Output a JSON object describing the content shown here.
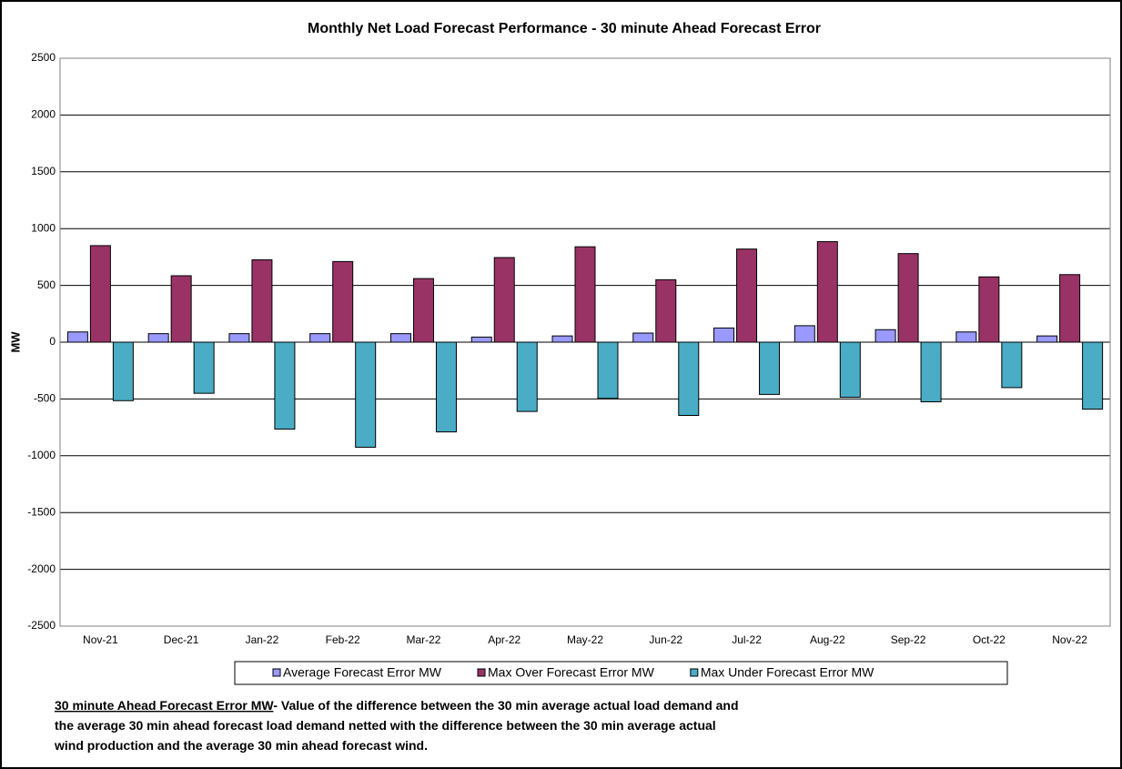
{
  "chart_data": {
    "type": "bar",
    "title": "Monthly Net Load Forecast Performance - 30 minute Ahead Forecast Error",
    "y_label": "MW",
    "categories": [
      "Nov-21",
      "Dec-21",
      "Jan-22",
      "Feb-22",
      "Mar-22",
      "Apr-22",
      "May-22",
      "Jun-22",
      "Jul-22",
      "Aug-22",
      "Sep-22",
      "Oct-22",
      "Nov-22"
    ],
    "series": [
      {
        "name": "Average Forecast Error MW",
        "color": "#9999ff",
        "values": [
          90,
          75,
          75,
          75,
          75,
          45,
          55,
          80,
          125,
          145,
          110,
          90,
          55
        ]
      },
      {
        "name": "Max Over Forecast Error MW",
        "color": "#993366",
        "values": [
          850,
          585,
          725,
          710,
          560,
          745,
          840,
          550,
          820,
          885,
          780,
          575,
          595
        ]
      },
      {
        "name": "Max Under Forecast Error MW",
        "color": "#4bacc6",
        "values": [
          -515,
          -450,
          -765,
          -925,
          -790,
          -610,
          -495,
          -645,
          -460,
          -485,
          -525,
          -400,
          -590
        ]
      }
    ],
    "ylim": [
      -2500,
      2500
    ],
    "yticks": [
      -2500,
      -2000,
      -1500,
      -1000,
      -500,
      0,
      500,
      1000,
      1500,
      2000,
      2500
    ],
    "grid": true,
    "legend": "bottom",
    "note_heading": "30 minute Ahead Forecast Error MW",
    "note_lines": [
      "- Value of the difference between the 30 min average actual load demand and",
      "the average 30 min ahead forecast load demand netted with the difference between the 30 min average actual",
      "wind production and the average 30 min ahead forecast wind."
    ]
  }
}
